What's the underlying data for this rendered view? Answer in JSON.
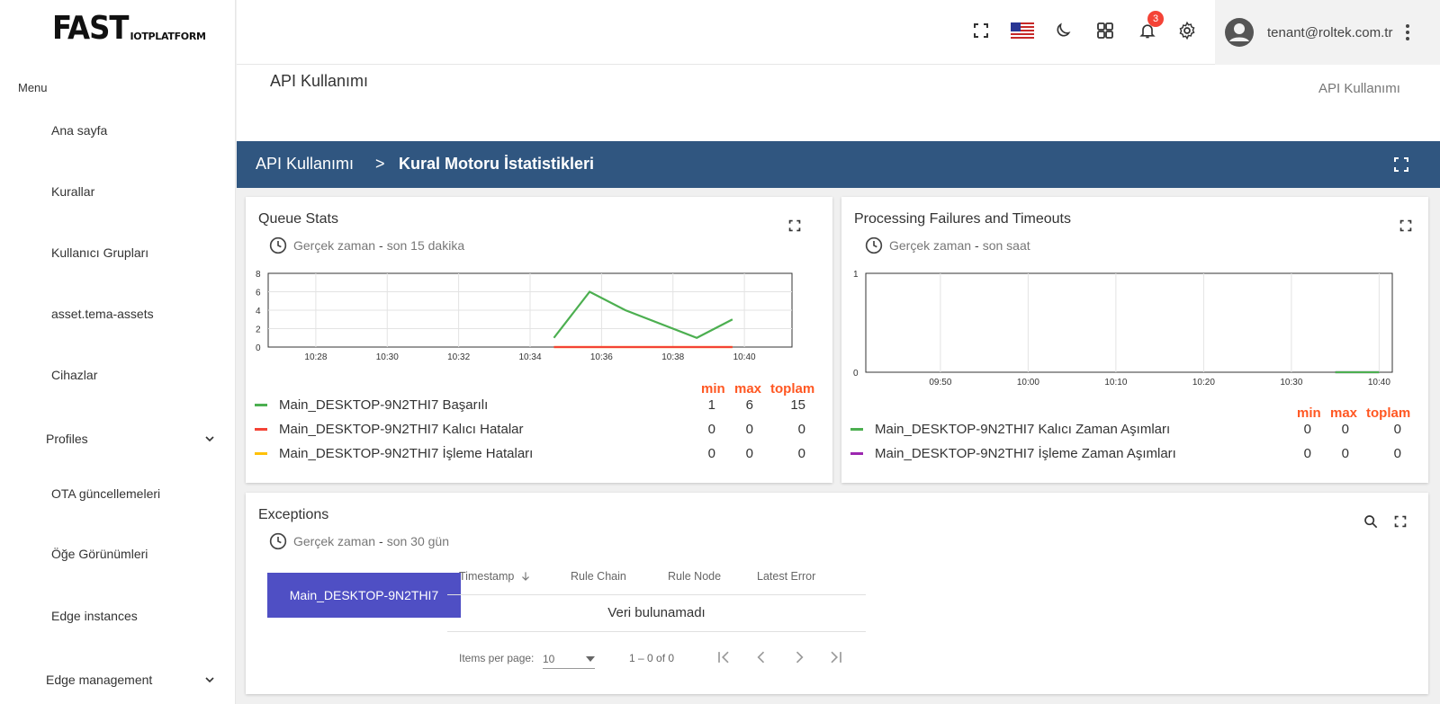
{
  "logo": {
    "big": "FAST",
    "small": "IOTPLATFORM"
  },
  "sidebar": {
    "menu_label": "Menu",
    "items": [
      "Ana sayfa",
      "Kurallar",
      "Kullanıcı Grupları",
      "asset.tema-assets",
      "Cihazlar",
      "Profiles",
      "OTA güncellemeleri",
      "Öğe Görünümleri",
      "Edge instances",
      "Edge management"
    ]
  },
  "topbar": {
    "notification_count": "3",
    "user_email": "tenant@roltek.com.tr"
  },
  "page": {
    "title": "API Kullanımı",
    "breadcrumb_right": "API Kullanımı"
  },
  "banner": {
    "parent": "API Kullanımı",
    "separator": ">",
    "current": "Kural Motoru İstatistikleri"
  },
  "queue_card": {
    "title": "Queue Stats",
    "time_prefix": "Gerçek zaman",
    "time_dash": "-",
    "time_window": "son 15 dakika",
    "legend_headers": {
      "min": "min",
      "max": "max",
      "total": "toplam"
    },
    "series": [
      {
        "name": "Main_DESKTOP-9N2THI7 Başarılı",
        "color": "#4caf50",
        "min": "1",
        "max": "6",
        "total": "15"
      },
      {
        "name": "Main_DESKTOP-9N2THI7 Kalıcı Hatalar",
        "color": "#f44336",
        "min": "0",
        "max": "0",
        "total": "0"
      },
      {
        "name": "Main_DESKTOP-9N2THI7 İşleme Hataları",
        "color": "#ffc107",
        "min": "0",
        "max": "0",
        "total": "0"
      }
    ]
  },
  "failures_card": {
    "title": "Processing Failures and Timeouts",
    "time_prefix": "Gerçek zaman",
    "time_dash": "-",
    "time_window": "son saat",
    "legend_headers": {
      "min": "min",
      "max": "max",
      "total": "toplam"
    },
    "series": [
      {
        "name": "Main_DESKTOP-9N2THI7 Kalıcı Zaman Aşımları",
        "color": "#4caf50",
        "min": "0",
        "max": "0",
        "total": "0"
      },
      {
        "name": "Main_DESKTOP-9N2THI7 İşleme Zaman Aşımları",
        "color": "#9c27b0",
        "min": "0",
        "max": "0",
        "total": "0"
      }
    ]
  },
  "exceptions_card": {
    "title": "Exceptions",
    "time_prefix": "Gerçek zaman",
    "time_dash": "-",
    "time_window": "son 30 gün",
    "tab": "Main_DESKTOP-9N2THI7",
    "columns": [
      "Timestamp",
      "Rule Chain",
      "Rule Node",
      "Latest Error"
    ],
    "empty": "Veri bulunamadı",
    "items_per_page_label": "Items per page:",
    "items_per_page": "10",
    "range": "1 – 0 of 0"
  },
  "chart_data": [
    {
      "type": "line",
      "title": "Queue Stats",
      "x_ticks": [
        "10:28",
        "10:30",
        "10:32",
        "10:34",
        "10:36",
        "10:38",
        "10:40"
      ],
      "ylim": [
        0,
        8
      ],
      "y_ticks": [
        0,
        2,
        4,
        6,
        8
      ],
      "series": [
        {
          "name": "Main_DESKTOP-9N2THI7 Başarılı",
          "color": "#4caf50",
          "x": [
            "10:34:40",
            "10:35:40",
            "10:36:40",
            "10:38:40",
            "10:39:40"
          ],
          "values": [
            1,
            6,
            4,
            1,
            3
          ]
        },
        {
          "name": "Main_DESKTOP-9N2THI7 Kalıcı Hatalar",
          "color": "#f44336",
          "x": [
            "10:34:40",
            "10:39:40"
          ],
          "values": [
            0,
            0
          ]
        },
        {
          "name": "Main_DESKTOP-9N2THI7 İşleme Hataları",
          "color": "#ffc107",
          "x": [
            "10:34:40",
            "10:39:40"
          ],
          "values": [
            0,
            0
          ]
        }
      ]
    },
    {
      "type": "line",
      "title": "Processing Failures and Timeouts",
      "x_ticks": [
        "09:50",
        "10:00",
        "10:10",
        "10:20",
        "10:30",
        "10:40"
      ],
      "ylim": [
        0,
        1
      ],
      "y_ticks": [
        0,
        1
      ],
      "series": [
        {
          "name": "Main_DESKTOP-9N2THI7 Kalıcı Zaman Aşımları",
          "color": "#4caf50",
          "x": [
            "10:35",
            "10:40"
          ],
          "values": [
            0,
            0
          ]
        },
        {
          "name": "Main_DESKTOP-9N2THI7 İşleme Zaman Aşımları",
          "color": "#9c27b0",
          "x": [
            "10:35",
            "10:40"
          ],
          "values": [
            0,
            0
          ]
        }
      ]
    }
  ]
}
